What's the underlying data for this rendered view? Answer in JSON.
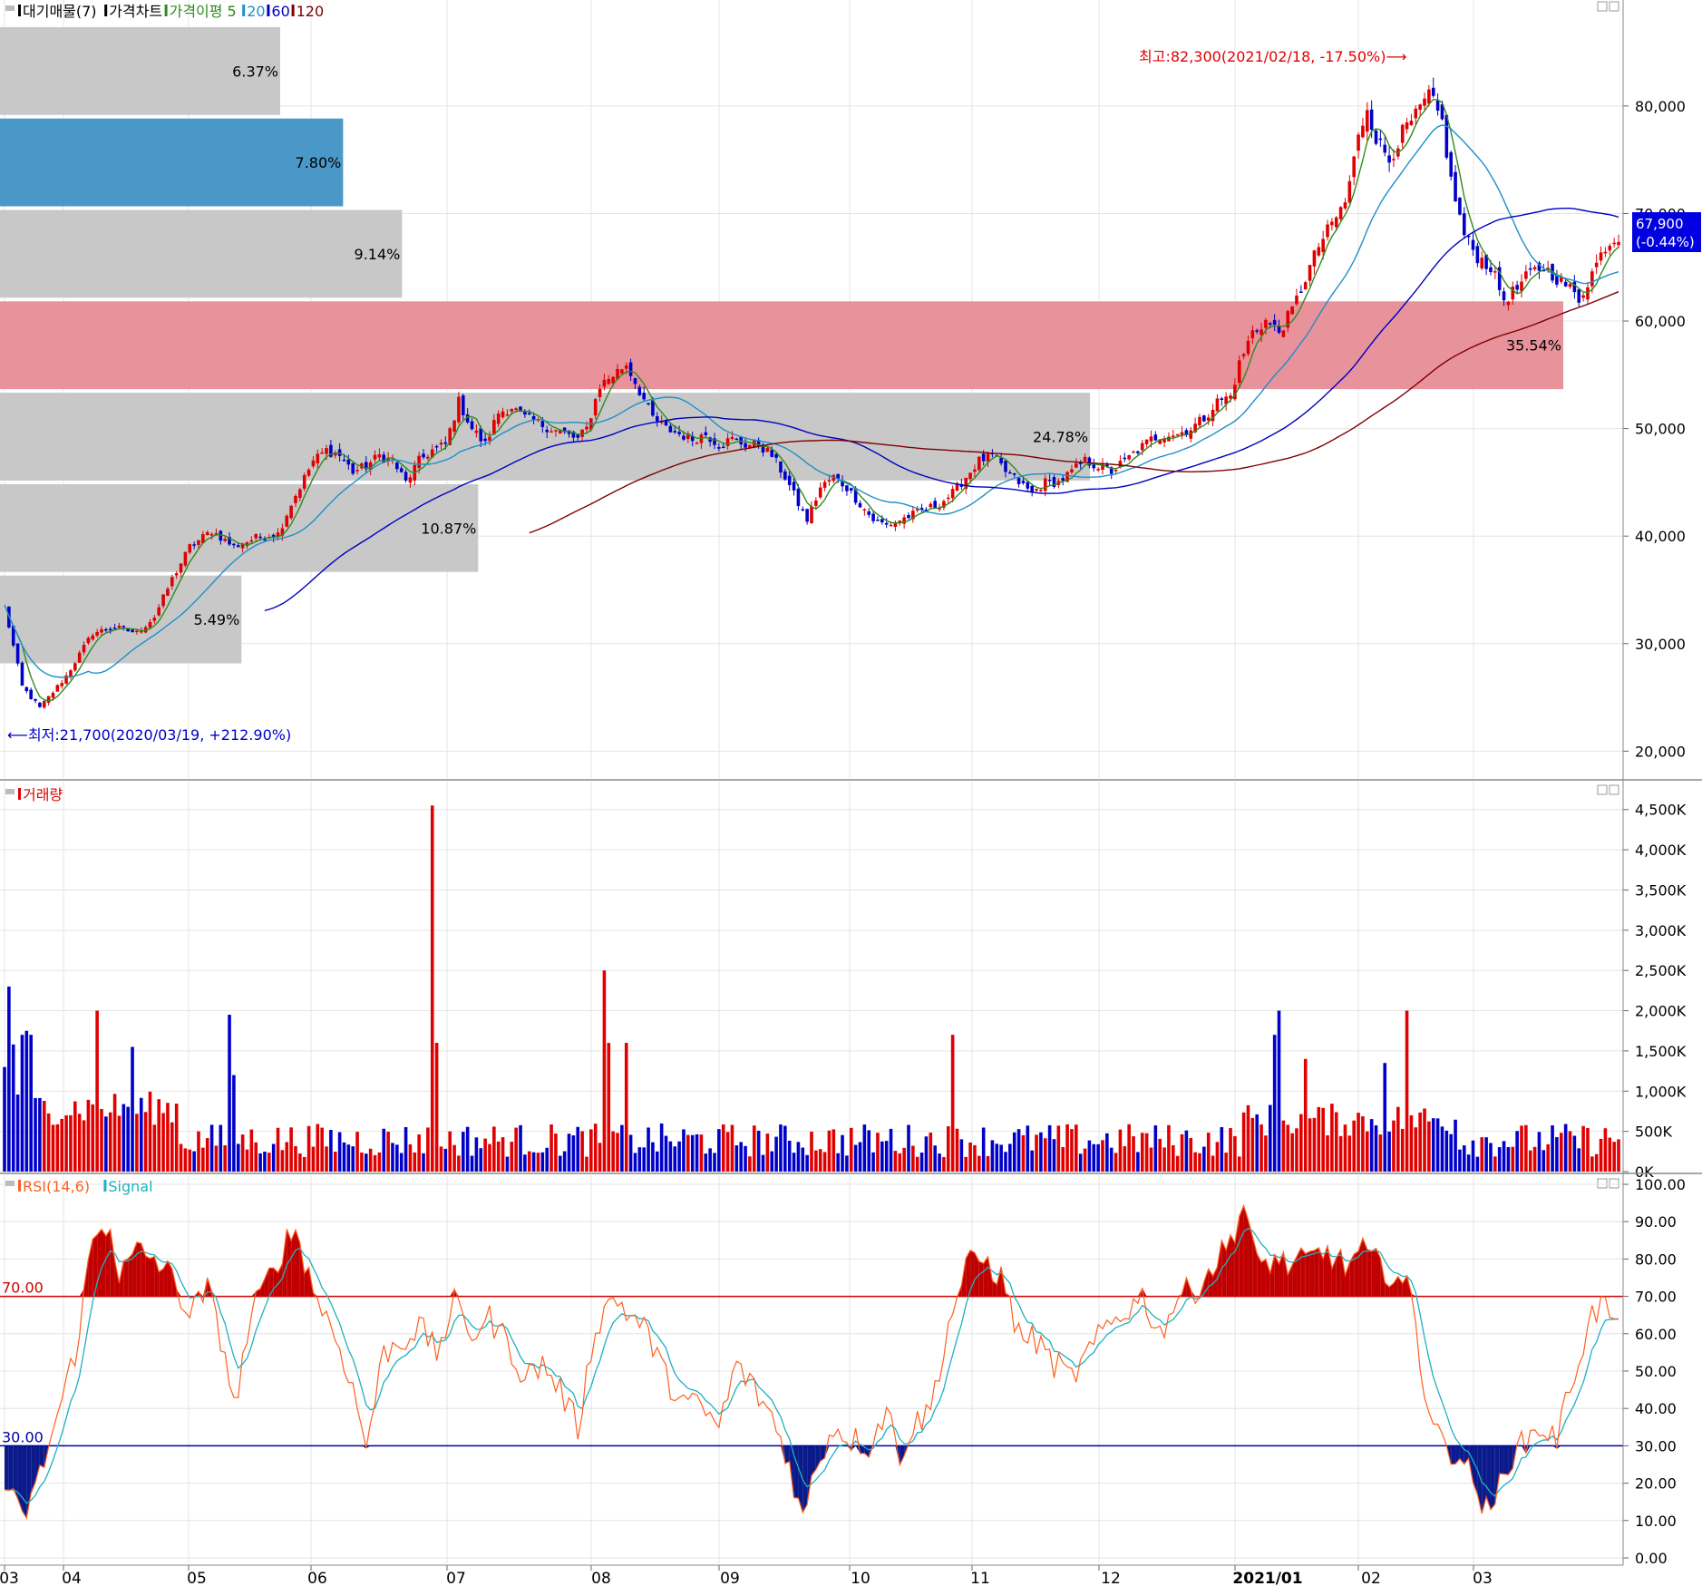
{
  "legends": {
    "price": [
      {
        "label": "대기매물(7)",
        "color": "#000000"
      },
      {
        "label": "가격차트",
        "color": "#000000"
      },
      {
        "label": "가격이평 5",
        "color": "#2e8b1e"
      },
      {
        "label": "20",
        "color": "#1e90c8"
      },
      {
        "label": "60",
        "color": "#0000c0"
      },
      {
        "label": "120",
        "color": "#800000"
      }
    ],
    "volume": [
      {
        "label": "거래량",
        "color": "#e00000"
      }
    ],
    "rsi": [
      {
        "label": "RSI(14,6)",
        "color": "#ff6020"
      },
      {
        "label": "Signal",
        "color": "#20b0c0"
      }
    ]
  },
  "annotations": {
    "high": "최고:82,300(2021/02/18, -17.50%)⟶",
    "low": "⟵최저:21,700(2020/03/19, +212.90%)",
    "current_price": "67,900",
    "current_change": "(-0.44%)"
  },
  "colors": {
    "up": "#e00000",
    "down": "#0000c8",
    "ma5": "#2e8b1e",
    "ma20": "#1e90c8",
    "ma60": "#0000c0",
    "ma120": "#800000",
    "rsi": "#ff6020",
    "signal": "#20b0c0",
    "band_gray": "#c8c8c8",
    "band_blue": "#4a98c8",
    "band_pink": "#e8929c"
  },
  "chart_data": [
    {
      "type": "candlestick",
      "ylim": [
        17500,
        88000
      ],
      "y_ticks": [
        20000,
        30000,
        40000,
        50000,
        60000,
        70000,
        80000
      ],
      "y_tick_labels": [
        "20,000",
        "30,000",
        "40,000",
        "50,000",
        "60,000",
        "70,000",
        "80,000"
      ],
      "x_labels": [
        "03",
        "04",
        "05",
        "06",
        "07",
        "08",
        "09",
        "10",
        "11",
        "12",
        "2021/01",
        "02",
        "03"
      ],
      "grid": true,
      "volume_profile": [
        {
          "low": 79000,
          "high": 87500,
          "label": "6.37%",
          "value": 6.37
        },
        {
          "low": 70500,
          "high": 79000,
          "label": "7.80%",
          "value": 7.8
        },
        {
          "low": 62000,
          "high": 70500,
          "label": "9.14%",
          "value": 9.14
        },
        {
          "low": 53500,
          "high": 62000,
          "label": "35.54%",
          "value": 35.54
        },
        {
          "low": 45000,
          "high": 53500,
          "label": "24.78%",
          "value": 24.78
        },
        {
          "low": 36500,
          "high": 45000,
          "label": "10.87%",
          "value": 10.87
        },
        {
          "low": 28000,
          "high": 36500,
          "label": "5.49%",
          "value": 5.49
        }
      ],
      "high": {
        "value": 82300,
        "date": "2021/02/18"
      },
      "low": {
        "value": 21700,
        "date": "2020/03/19"
      },
      "close_path": [
        [
          0,
          33500
        ],
        [
          4,
          26000
        ],
        [
          8,
          24000
        ],
        [
          14,
          27000
        ],
        [
          20,
          31000
        ],
        [
          25,
          31500
        ],
        [
          30,
          31000
        ],
        [
          34,
          32500
        ],
        [
          38,
          36000
        ],
        [
          42,
          39000
        ],
        [
          47,
          40500
        ],
        [
          52,
          39000
        ],
        [
          55,
          39500
        ],
        [
          58,
          40000
        ],
        [
          62,
          40200
        ],
        [
          65,
          43000
        ],
        [
          70,
          47000
        ],
        [
          73,
          48000
        ],
        [
          76,
          47500
        ],
        [
          79,
          46000
        ],
        [
          82,
          46500
        ],
        [
          85,
          47500
        ],
        [
          88,
          47000
        ],
        [
          91,
          45000
        ],
        [
          94,
          47000
        ],
        [
          97,
          48000
        ],
        [
          100,
          48500
        ],
        [
          103,
          52500
        ],
        [
          106,
          50000
        ],
        [
          109,
          48500
        ],
        [
          112,
          51500
        ],
        [
          115,
          52000
        ],
        [
          118,
          51000
        ],
        [
          121,
          50500
        ],
        [
          124,
          50000
        ],
        [
          127,
          49500
        ],
        [
          130,
          49000
        ],
        [
          132,
          50000
        ],
        [
          135,
          54000
        ],
        [
          138,
          55000
        ],
        [
          141,
          56000
        ],
        [
          144,
          53500
        ],
        [
          147,
          51000
        ],
        [
          150,
          50000
        ],
        [
          153,
          49500
        ],
        [
          156,
          49000
        ],
        [
          159,
          49500
        ],
        [
          162,
          48500
        ],
        [
          165,
          49000
        ],
        [
          168,
          48500
        ],
        [
          171,
          48500
        ],
        [
          174,
          47500
        ],
        [
          177,
          45500
        ],
        [
          180,
          43000
        ],
        [
          182,
          41500
        ],
        [
          185,
          44500
        ],
        [
          188,
          45500
        ],
        [
          191,
          44500
        ],
        [
          194,
          43000
        ],
        [
          197,
          41500
        ],
        [
          200,
          41000
        ],
        [
          203,
          41500
        ],
        [
          206,
          42000
        ],
        [
          209,
          42500
        ],
        [
          212,
          43000
        ],
        [
          215,
          44000
        ],
        [
          218,
          45500
        ],
        [
          221,
          47000
        ],
        [
          224,
          47500
        ],
        [
          227,
          46000
        ],
        [
          230,
          45000
        ],
        [
          233,
          44000
        ],
        [
          236,
          45000
        ],
        [
          239,
          45000
        ],
        [
          242,
          46000
        ],
        [
          245,
          47000
        ],
        [
          248,
          46500
        ],
        [
          251,
          46000
        ],
        [
          254,
          47000
        ],
        [
          257,
          48000
        ],
        [
          260,
          49000
        ],
        [
          263,
          49500
        ],
        [
          266,
          49500
        ],
        [
          269,
          50000
        ],
        [
          272,
          51000
        ],
        [
          275,
          52500
        ],
        [
          278,
          53000
        ],
        [
          280,
          56000
        ],
        [
          283,
          59000
        ],
        [
          286,
          60000
        ],
        [
          289,
          59000
        ],
        [
          292,
          61000
        ],
        [
          295,
          64000
        ],
        [
          298,
          67000
        ],
        [
          301,
          69000
        ],
        [
          304,
          71000
        ],
        [
          307,
          77000
        ],
        [
          309,
          80000
        ],
        [
          311,
          77000
        ],
        [
          314,
          75000
        ],
        [
          317,
          77500
        ],
        [
          320,
          79000
        ],
        [
          323,
          81000
        ],
        [
          326,
          78500
        ],
        [
          328,
          73000
        ],
        [
          331,
          68000
        ],
        [
          334,
          66000
        ],
        [
          337,
          65000
        ],
        [
          340,
          62000
        ],
        [
          343,
          63000
        ],
        [
          346,
          64500
        ],
        [
          349,
          65000
        ],
        [
          352,
          64000
        ],
        [
          355,
          63000
        ],
        [
          357,
          62000
        ],
        [
          360,
          64500
        ],
        [
          363,
          67000
        ],
        [
          366,
          67900
        ]
      ],
      "moving_averages": {
        "5": {
          "name": "가격이평 5",
          "values": "smoothed from close_path"
        },
        "20": {
          "name": "20",
          "values": "smoothed from close_path"
        },
        "60": {
          "name": "60",
          "values": "smoothed from close_path"
        },
        "120": {
          "name": "120",
          "values": "smoothed from close_path"
        }
      }
    },
    {
      "type": "bar",
      "title": "거래량",
      "ylim": [
        0,
        4700
      ],
      "unit": "K",
      "y_ticks": [
        0,
        500,
        1000,
        1500,
        2000,
        2500,
        3000,
        3500,
        4000,
        4500
      ],
      "y_tick_labels": [
        "0K",
        "500K",
        "1,000K",
        "1,500K",
        "2,000K",
        "2,500K",
        "3,000K",
        "3,500K",
        "4,000K",
        "4,500K"
      ],
      "spikes": [
        {
          "i": 0,
          "value": 1300
        },
        {
          "i": 1,
          "value": 2300
        },
        {
          "i": 2,
          "value": 1580
        },
        {
          "i": 4,
          "value": 1700
        },
        {
          "i": 5,
          "value": 1750
        },
        {
          "i": 6,
          "value": 1700
        },
        {
          "i": 21,
          "value": 2000
        },
        {
          "i": 29,
          "value": 1550
        },
        {
          "i": 51,
          "value": 1950
        },
        {
          "i": 52,
          "value": 1200
        },
        {
          "i": 97,
          "value": 4550
        },
        {
          "i": 98,
          "value": 1600
        },
        {
          "i": 136,
          "value": 2500
        },
        {
          "i": 137,
          "value": 1600
        },
        {
          "i": 141,
          "value": 1600
        },
        {
          "i": 215,
          "value": 1700
        },
        {
          "i": 288,
          "value": 1700
        },
        {
          "i": 289,
          "value": 2000
        },
        {
          "i": 295,
          "value": 1400
        },
        {
          "i": 313,
          "value": 1350
        },
        {
          "i": 318,
          "value": 2000
        }
      ]
    },
    {
      "type": "line",
      "title": "RSI(14,6)",
      "series": [
        {
          "name": "RSI(14,6)"
        },
        {
          "name": "Signal"
        }
      ],
      "ylim": [
        0,
        100
      ],
      "y_ticks": [
        0,
        10,
        20,
        30,
        40,
        50,
        60,
        70,
        80,
        90,
        100
      ],
      "y_tick_labels": [
        "0.00",
        "10.00",
        "20.00",
        "30.00",
        "40.00",
        "50.00",
        "60.00",
        "70.00",
        "80.00",
        "90.00",
        "100.00"
      ],
      "thresholds": [
        {
          "value": 70,
          "label": "70.00"
        },
        {
          "value": 30,
          "label": "30.00"
        }
      ],
      "rsi_path": [
        [
          0,
          20
        ],
        [
          4,
          10
        ],
        [
          8,
          22
        ],
        [
          12,
          38
        ],
        [
          16,
          55
        ],
        [
          20,
          85
        ],
        [
          24,
          90
        ],
        [
          26,
          75
        ],
        [
          30,
          82
        ],
        [
          34,
          80
        ],
        [
          38,
          75
        ],
        [
          42,
          65
        ],
        [
          46,
          72
        ],
        [
          50,
          55
        ],
        [
          52,
          40
        ],
        [
          56,
          65
        ],
        [
          60,
          75
        ],
        [
          64,
          85
        ],
        [
          66,
          88
        ],
        [
          70,
          72
        ],
        [
          74,
          62
        ],
        [
          78,
          50
        ],
        [
          82,
          30
        ],
        [
          86,
          55
        ],
        [
          90,
          58
        ],
        [
          94,
          62
        ],
        [
          98,
          55
        ],
        [
          102,
          68
        ],
        [
          106,
          60
        ],
        [
          110,
          64
        ],
        [
          114,
          58
        ],
        [
          118,
          48
        ],
        [
          122,
          52
        ],
        [
          126,
          45
        ],
        [
          130,
          35
        ],
        [
          134,
          62
        ],
        [
          138,
          70
        ],
        [
          142,
          65
        ],
        [
          146,
          60
        ],
        [
          150,
          48
        ],
        [
          154,
          42
        ],
        [
          158,
          40
        ],
        [
          162,
          35
        ],
        [
          166,
          52
        ],
        [
          170,
          45
        ],
        [
          174,
          38
        ],
        [
          178,
          25
        ],
        [
          181,
          10
        ],
        [
          184,
          25
        ],
        [
          188,
          35
        ],
        [
          192,
          32
        ],
        [
          196,
          30
        ],
        [
          200,
          40
        ],
        [
          203,
          28
        ],
        [
          206,
          35
        ],
        [
          210,
          40
        ],
        [
          214,
          62
        ],
        [
          218,
          78
        ],
        [
          222,
          80
        ],
        [
          226,
          75
        ],
        [
          230,
          60
        ],
        [
          234,
          58
        ],
        [
          238,
          52
        ],
        [
          242,
          48
        ],
        [
          246,
          55
        ],
        [
          250,
          62
        ],
        [
          254,
          66
        ],
        [
          258,
          70
        ],
        [
          262,
          60
        ],
        [
          266,
          70
        ],
        [
          270,
          72
        ],
        [
          274,
          78
        ],
        [
          278,
          85
        ],
        [
          281,
          95
        ],
        [
          284,
          78
        ],
        [
          288,
          80
        ],
        [
          292,
          78
        ],
        [
          296,
          80
        ],
        [
          300,
          82
        ],
        [
          304,
          78
        ],
        [
          308,
          82
        ],
        [
          312,
          78
        ],
        [
          316,
          75
        ],
        [
          319,
          70
        ],
        [
          322,
          45
        ],
        [
          326,
          30
        ],
        [
          330,
          28
        ],
        [
          334,
          18
        ],
        [
          337,
          10
        ],
        [
          340,
          25
        ],
        [
          344,
          30
        ],
        [
          348,
          35
        ],
        [
          352,
          32
        ],
        [
          356,
          50
        ],
        [
          360,
          65
        ],
        [
          363,
          68
        ],
        [
          366,
          60
        ]
      ]
    }
  ]
}
